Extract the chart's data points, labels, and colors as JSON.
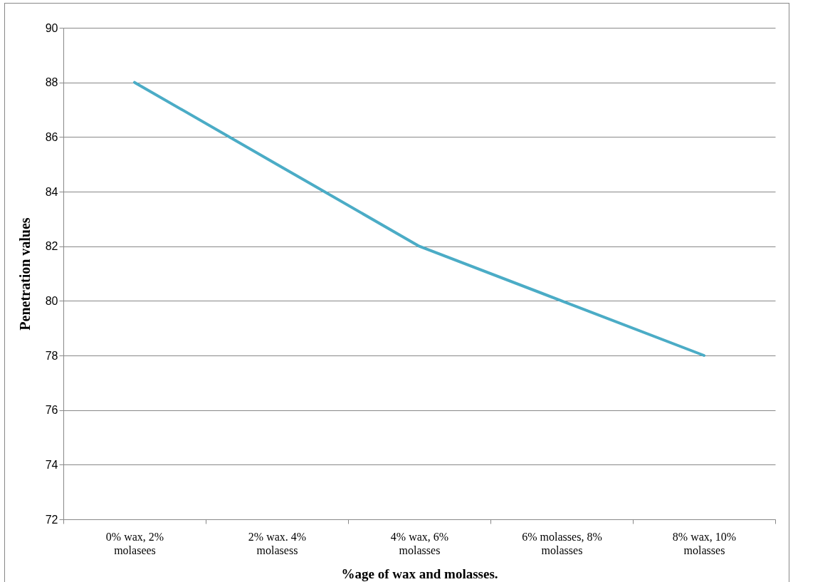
{
  "chart_data": {
    "type": "line",
    "xlabel": "%age of wax and molasses.",
    "ylabel": "Penetration values",
    "categories": [
      "0% wax, 2% molasees",
      "2% wax. 4% molasess",
      "4% wax, 6% molasses",
      "6% molasses, 8% molasses",
      "8% wax, 10% molasses"
    ],
    "series": [
      {
        "color": "#4bacc6",
        "values": [
          88,
          85,
          82,
          80,
          78
        ]
      }
    ],
    "ylim": [
      72,
      90
    ],
    "yticks": [
      72,
      74,
      76,
      78,
      80,
      82,
      84,
      86,
      88,
      90
    ],
    "grid": "y",
    "legend": false,
    "marker": "none",
    "line_style": "solid"
  }
}
